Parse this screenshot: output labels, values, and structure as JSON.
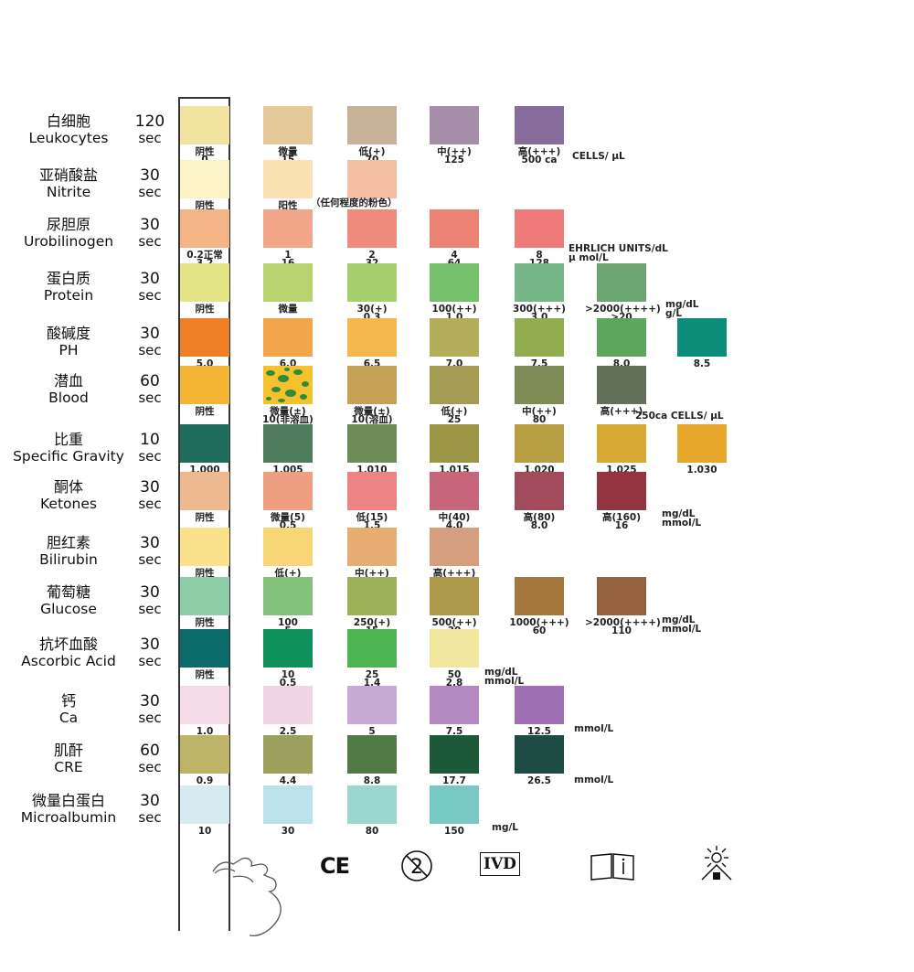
{
  "chart_data": {
    "type": "table",
    "rows": [
      {
        "cn": "白细胞",
        "en": "Leukocytes",
        "time": "120",
        "time_unit": "sec",
        "colors": [
          "#f3e3a1",
          "#e6c99a",
          "#c7b197",
          "#a48ea8",
          "#876d9c"
        ],
        "labels": [
          [
            "阴性",
            "0"
          ],
          [
            "微量",
            "15"
          ],
          [
            "低(+)",
            "70"
          ],
          [
            "中(++)",
            "125"
          ],
          [
            "高(+++)",
            "500 ca"
          ]
        ],
        "units": [
          "CELLS/ μL"
        ]
      },
      {
        "cn": "亚硝酸盐",
        "en": "Nitrite",
        "time": "30",
        "time_unit": "sec",
        "colors": [
          "#fbf2c6",
          "#fbe0b4",
          "#f4bfa5"
        ],
        "labels": [
          [
            "阴性"
          ],
          [
            "阳性"
          ],
          []
        ],
        "units": [
          "（任何程度的粉色）"
        ]
      },
      {
        "cn": "尿胆原",
        "en": "Urobilinogen",
        "time": "30",
        "time_unit": "sec",
        "colors": [
          "#f3b585",
          "#f1a68a",
          "#ee8b7c",
          "#eb8273",
          "#ee7a7a"
        ],
        "labels": [
          [
            "0.2正常",
            "3.2"
          ],
          [
            "1",
            "16"
          ],
          [
            "2",
            "32"
          ],
          [
            "4",
            "64"
          ],
          [
            "8",
            "128"
          ]
        ],
        "units": [
          "EHRLICH UNITS/dL",
          "μ mol/L"
        ]
      },
      {
        "cn": "蛋白质",
        "en": "Protein",
        "time": "30",
        "time_unit": "sec",
        "colors": [
          "#e3e587",
          "#b9d36e",
          "#a6cf6d",
          "#74c06b",
          "#77b687",
          "#6aa56f"
        ],
        "labels": [
          [
            "阴性"
          ],
          [
            "微量"
          ],
          [
            "30(+)",
            "0.3"
          ],
          [
            "100(++)",
            "1.0"
          ],
          [
            "300(+++)",
            "3.0"
          ],
          [
            ">2000(++++)",
            ">20"
          ]
        ],
        "units": [
          "mg/dL",
          "g/L"
        ]
      },
      {
        "cn": "酸碱度",
        "en": "PH",
        "time": "30",
        "time_unit": "sec",
        "colors": [
          "#ee7f25",
          "#f3a549",
          "#f4b84f",
          "#b2ae5a",
          "#92ad50",
          "#5ba55c",
          "#0b8d79"
        ],
        "labels": [
          [
            "5.0"
          ],
          [
            "6.0"
          ],
          [
            "6.5"
          ],
          [
            "7.0"
          ],
          [
            "7.5"
          ],
          [
            "8.0"
          ],
          [
            "8.5"
          ]
        ],
        "units": []
      },
      {
        "cn": "潜血",
        "en": "Blood",
        "time": "60",
        "time_unit": "sec",
        "colors": [
          "#f5b534",
          "#f5c22e",
          "#c4a154",
          "#a59c54",
          "#7e8b55",
          "#63705a"
        ],
        "labels": [
          [
            "阴性"
          ],
          [
            "微量(±)",
            "10(非溶血)"
          ],
          [
            "微量(±)",
            "10(溶血)"
          ],
          [
            "低(+)",
            "25"
          ],
          [
            "中(++)",
            "80"
          ],
          [
            "高(+++)"
          ]
        ],
        "units": [
          "250ca  CELLS/ μL"
        ]
      },
      {
        "cn": "比重",
        "en": "Specific Gravity",
        "time": "10",
        "time_unit": "sec",
        "colors": [
          "#1e6d5c",
          "#4e7c5c",
          "#6e8c58",
          "#9a9545",
          "#b69e43",
          "#d9aa33",
          "#e6a72b"
        ],
        "labels": [
          [
            "1.000"
          ],
          [
            "1.005"
          ],
          [
            "1.010"
          ],
          [
            "1.015"
          ],
          [
            "1.020"
          ],
          [
            "1.025"
          ],
          [
            "1.030"
          ]
        ],
        "units": []
      },
      {
        "cn": "酮体",
        "en": "Ketones",
        "time": "30",
        "time_unit": "sec",
        "colors": [
          "#efb98f",
          "#ee9f82",
          "#eb8482",
          "#c7667a",
          "#a24b5b",
          "#93343f"
        ],
        "labels": [
          [
            "阴性"
          ],
          [
            "微量(5)",
            "0.5"
          ],
          [
            "低(15)",
            "1.5"
          ],
          [
            "中(40)",
            "4.0"
          ],
          [
            "高(80)",
            "8.0"
          ],
          [
            "高(160)",
            "16"
          ]
        ],
        "units": [
          "mg/dL",
          "mmol/L"
        ]
      },
      {
        "cn": "胆红素",
        "en": "Bilirubin",
        "time": "30",
        "time_unit": "sec",
        "colors": [
          "#fbe18b",
          "#f8d577",
          "#e7ad72",
          "#d59e7e"
        ],
        "labels": [
          [
            "阴性"
          ],
          [
            "低(+)"
          ],
          [
            "中(++)"
          ],
          [
            "高(+++)"
          ]
        ],
        "units": []
      },
      {
        "cn": "葡萄糖",
        "en": "Glucose",
        "time": "30",
        "time_unit": "sec",
        "colors": [
          "#8fcca8",
          "#82c27a",
          "#9db159",
          "#ae9849",
          "#a4773c",
          "#98613f"
        ],
        "labels": [
          [
            "阴性"
          ],
          [
            "100",
            "5"
          ],
          [
            "250(+)",
            "15"
          ],
          [
            "500(++)",
            "30"
          ],
          [
            "1000(+++)",
            "60"
          ],
          [
            ">2000(++++)",
            "110"
          ]
        ],
        "units": [
          "mg/dL",
          "mmol/L"
        ]
      },
      {
        "cn": "抗坏血酸",
        "en": "Ascorbic Acid",
        "time": "30",
        "time_unit": "sec",
        "colors": [
          "#0b6b6a",
          "#0e9259",
          "#4db452",
          "#f0e69e"
        ],
        "labels": [
          [
            "阴性"
          ],
          [
            "10",
            "0.5"
          ],
          [
            "25",
            "1.4"
          ],
          [
            "50",
            "2.8"
          ]
        ],
        "units": [
          "mg/dL",
          "mmol/L"
        ]
      },
      {
        "cn": "钙",
        "en": "Ca",
        "time": "30",
        "time_unit": "sec",
        "colors": [
          "#f5dbe8",
          "#f1d4e6",
          "#c8a8d4",
          "#b489c1",
          "#9f6fb4"
        ],
        "labels": [
          [
            "1.0"
          ],
          [
            "2.5"
          ],
          [
            "5"
          ],
          [
            "7.5"
          ],
          [
            "12.5"
          ]
        ],
        "units": [
          "mmol/L"
        ]
      },
      {
        "cn": "肌酐",
        "en": "CRE",
        "time": "60",
        "time_unit": "sec",
        "colors": [
          "#bdb467",
          "#9ba05c",
          "#517b45",
          "#1d5839",
          "#1e4c45"
        ],
        "labels": [
          [
            "0.9"
          ],
          [
            "4.4"
          ],
          [
            "8.8"
          ],
          [
            "17.7"
          ],
          [
            "26.5"
          ]
        ],
        "units": [
          "mmol/L"
        ]
      },
      {
        "cn": "微量白蛋白",
        "en": "Microalbumin",
        "time": "30",
        "time_unit": "sec",
        "colors": [
          "#d6ebf1",
          "#bce3ec",
          "#9bd6d0",
          "#78c9c4"
        ],
        "labels": [
          [
            "10"
          ],
          [
            "30"
          ],
          [
            "80"
          ],
          [
            "150"
          ]
        ],
        "units": [
          "mg/L"
        ]
      }
    ]
  },
  "symbols": {
    "ce": "CE",
    "ivd": "IVD",
    "icons": [
      "hand-holding-strip-icon",
      "ce-mark-icon",
      "do-not-reuse-icon",
      "ivd-icon",
      "consult-instructions-icon",
      "keep-away-from-sunlight-icon"
    ]
  }
}
